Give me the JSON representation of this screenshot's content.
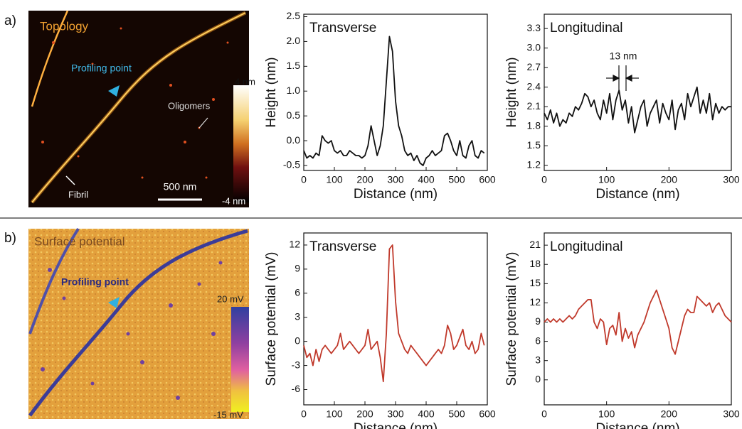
{
  "panel_labels": [
    "a)",
    "b)"
  ],
  "images": [
    {
      "title": "Topology",
      "annotations": [
        "Profiling point",
        "Oligomers",
        "Fibril"
      ],
      "scale_bar": "500 nm",
      "colorbar": {
        "max": "4 nm",
        "min": "-4 nm"
      }
    },
    {
      "title": "Surface potential",
      "annotations": [
        "Profiling point"
      ],
      "colorbar": {
        "max": "20 mV",
        "min": "-15 mV"
      }
    }
  ],
  "chart_data": [
    {
      "type": "line",
      "title": "Transverse",
      "x_label": "Distance (nm)",
      "y_label": "Height (nm)",
      "xlim": [
        0,
        600
      ],
      "xticks": [
        0,
        100,
        200,
        300,
        400,
        500,
        600
      ],
      "ylim": [
        -0.6,
        2.55
      ],
      "yticks": [
        -0.5,
        {
          "value": 0,
          "label": "0.0"
        },
        0.5,
        {
          "value": 1,
          "label": "1.0"
        },
        1.5,
        {
          "value": 2,
          "label": "2.0"
        },
        2.5
      ],
      "x": [
        0,
        10,
        20,
        30,
        40,
        50,
        60,
        70,
        80,
        90,
        100,
        110,
        120,
        130,
        140,
        150,
        160,
        170,
        180,
        190,
        200,
        210,
        220,
        230,
        240,
        250,
        260,
        270,
        280,
        290,
        300,
        310,
        320,
        330,
        340,
        350,
        360,
        370,
        380,
        390,
        400,
        410,
        420,
        430,
        440,
        450,
        460,
        470,
        480,
        490,
        500,
        510,
        520,
        530,
        540,
        550,
        560,
        570,
        580,
        590
      ],
      "series": [
        {
          "color": "#111111",
          "values": [
            -0.2,
            -0.35,
            -0.3,
            -0.35,
            -0.25,
            -0.3,
            0.1,
            0.0,
            -0.05,
            0.0,
            -0.2,
            -0.25,
            -0.2,
            -0.3,
            -0.3,
            -0.2,
            -0.25,
            -0.3,
            -0.3,
            -0.35,
            -0.3,
            -0.1,
            0.3,
            0.0,
            -0.3,
            -0.1,
            0.3,
            1.2,
            2.1,
            1.8,
            0.8,
            0.3,
            0.1,
            -0.2,
            -0.3,
            -0.25,
            -0.4,
            -0.3,
            -0.45,
            -0.5,
            -0.35,
            -0.3,
            -0.2,
            -0.3,
            -0.25,
            -0.2,
            0.1,
            0.15,
            0.0,
            -0.2,
            -0.3,
            0.0,
            -0.3,
            -0.35,
            -0.1,
            0.0,
            -0.3,
            -0.35,
            -0.2,
            -0.25
          ]
        }
      ]
    },
    {
      "type": "line",
      "title": "Longitudinal",
      "x_label": "Distance (nm)",
      "y_label": "Height (nm)",
      "annotations": [
        "13 nm"
      ],
      "xlim": [
        0,
        300
      ],
      "xticks": [
        0,
        100,
        200,
        300
      ],
      "ylim": [
        1.12,
        3.52
      ],
      "yticks": [
        1.2,
        1.5,
        1.8,
        2.1,
        2.4,
        2.7,
        {
          "value": 3,
          "label": "3.0"
        },
        3.3
      ],
      "x": [
        0,
        5,
        10,
        15,
        20,
        25,
        30,
        35,
        40,
        45,
        50,
        55,
        60,
        65,
        70,
        75,
        80,
        85,
        90,
        95,
        100,
        105,
        110,
        115,
        120,
        125,
        130,
        135,
        140,
        145,
        150,
        155,
        160,
        165,
        170,
        175,
        180,
        185,
        190,
        195,
        200,
        205,
        210,
        215,
        220,
        225,
        230,
        235,
        240,
        245,
        250,
        255,
        260,
        265,
        270,
        275,
        280,
        285,
        290,
        295,
        300
      ],
      "series": [
        {
          "color": "#111111",
          "values": [
            2.0,
            1.9,
            2.05,
            1.85,
            2.0,
            1.8,
            1.9,
            1.85,
            2.0,
            1.95,
            2.1,
            2.05,
            2.15,
            2.3,
            2.25,
            2.1,
            2.2,
            2.0,
            1.9,
            2.2,
            2.0,
            2.3,
            1.9,
            2.2,
            2.35,
            2.05,
            2.2,
            1.85,
            2.1,
            1.7,
            1.9,
            2.1,
            2.2,
            1.8,
            2.0,
            2.1,
            2.2,
            1.85,
            2.15,
            2.0,
            1.9,
            2.2,
            1.75,
            2.05,
            2.15,
            1.9,
            2.3,
            2.1,
            2.25,
            2.4,
            2.0,
            2.2,
            2.0,
            2.3,
            1.9,
            2.15,
            2.0,
            2.1,
            2.05,
            2.1,
            2.1
          ]
        }
      ]
    },
    {
      "type": "line",
      "title": "Transverse",
      "x_label": "Distance (nm)",
      "y_label": "Surface potential (mV)",
      "xlim": [
        0,
        600
      ],
      "xticks": [
        0,
        100,
        200,
        300,
        400,
        500,
        600
      ],
      "ylim": [
        -7.9,
        13.5
      ],
      "yticks": [
        -6,
        -3,
        0,
        3,
        6,
        9,
        12
      ],
      "x": [
        0,
        10,
        20,
        30,
        40,
        50,
        60,
        70,
        80,
        90,
        100,
        110,
        120,
        130,
        140,
        150,
        160,
        170,
        180,
        190,
        200,
        210,
        220,
        230,
        240,
        250,
        260,
        270,
        280,
        290,
        300,
        310,
        320,
        330,
        340,
        350,
        360,
        370,
        380,
        390,
        400,
        410,
        420,
        430,
        440,
        450,
        460,
        470,
        480,
        490,
        500,
        510,
        520,
        530,
        540,
        550,
        560,
        570,
        580,
        590
      ],
      "series": [
        {
          "color": "#c0392b",
          "values": [
            -0.5,
            -2,
            -1.5,
            -3,
            -1,
            -2.5,
            -1,
            -0.5,
            -1,
            -1.5,
            -1,
            -0.5,
            1,
            -1,
            -0.5,
            0,
            -0.5,
            -1,
            -1.5,
            -1,
            -0.5,
            1.5,
            -1,
            -0.5,
            0,
            -2,
            -5,
            1,
            11.5,
            12,
            5,
            1,
            0,
            -1,
            -1.5,
            -0.5,
            -1,
            -1.5,
            -2,
            -2.5,
            -3,
            -2.5,
            -2,
            -1.5,
            -1,
            -1.5,
            -0.5,
            2,
            1,
            -1,
            -0.5,
            0.5,
            1.5,
            -0.5,
            -1,
            0,
            -1.5,
            -1,
            1,
            -0.5
          ]
        }
      ]
    },
    {
      "type": "line",
      "title": "Longitudinal",
      "x_label": "Distance (nm)",
      "y_label": "Surface potential (mV)",
      "xlim": [
        0,
        300
      ],
      "xticks": [
        0,
        100,
        200,
        300
      ],
      "ylim": [
        -3.9,
        22.9
      ],
      "yticks": [
        0,
        3,
        6,
        9,
        12,
        15,
        18,
        21
      ],
      "x": [
        0,
        5,
        10,
        15,
        20,
        25,
        30,
        35,
        40,
        45,
        50,
        55,
        60,
        65,
        70,
        75,
        80,
        85,
        90,
        95,
        100,
        105,
        110,
        115,
        120,
        125,
        130,
        135,
        140,
        145,
        150,
        155,
        160,
        165,
        170,
        175,
        180,
        185,
        190,
        195,
        200,
        205,
        210,
        215,
        220,
        225,
        230,
        235,
        240,
        245,
        250,
        255,
        260,
        265,
        270,
        275,
        280,
        285,
        290,
        295,
        300
      ],
      "series": [
        {
          "color": "#c0392b",
          "values": [
            9,
            9.5,
            9,
            9.5,
            9,
            9.5,
            9,
            9.5,
            10,
            9.5,
            10,
            11,
            11.5,
            12,
            12.5,
            12.5,
            9,
            8,
            9.5,
            9,
            5.5,
            8,
            8.5,
            7,
            10.5,
            6,
            8,
            6.5,
            7.5,
            5,
            7,
            8,
            9,
            10.5,
            12,
            13,
            14,
            12.5,
            11,
            9.5,
            8,
            5,
            4,
            6,
            8,
            10,
            11,
            10.5,
            10.5,
            13,
            12.5,
            12,
            11.5,
            12,
            10.5,
            11.5,
            12,
            11,
            10,
            9.5,
            9
          ]
        }
      ]
    }
  ]
}
